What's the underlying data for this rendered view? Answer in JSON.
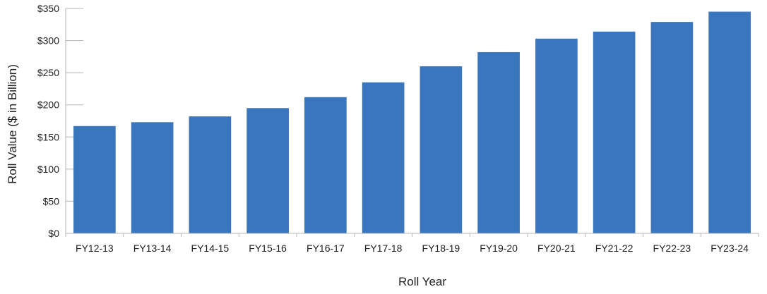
{
  "chart_data": {
    "type": "bar",
    "title": "",
    "xlabel": "Roll Year",
    "ylabel": "Roll Value ($ in Billion)",
    "categories": [
      "FY12-13",
      "FY13-14",
      "FY14-15",
      "FY15-16",
      "FY16-17",
      "FY17-18",
      "FY18-19",
      "FY19-20",
      "FY20-21",
      "FY21-22",
      "FY22-23",
      "FY23-24"
    ],
    "values": [
      167,
      173,
      182,
      195,
      212,
      235,
      260,
      282,
      303,
      314,
      329,
      345
    ],
    "ylim": [
      0,
      350
    ],
    "yticks": [
      0,
      50,
      100,
      150,
      200,
      250,
      300,
      350
    ],
    "ytick_labels": [
      "$0",
      "$50",
      "$100",
      "$150",
      "$200",
      "$250",
      "$300",
      "$350"
    ],
    "grid": false,
    "legend": "none",
    "colors": {
      "bar": "#3a76bd",
      "axis": "#b5b5b5"
    }
  }
}
